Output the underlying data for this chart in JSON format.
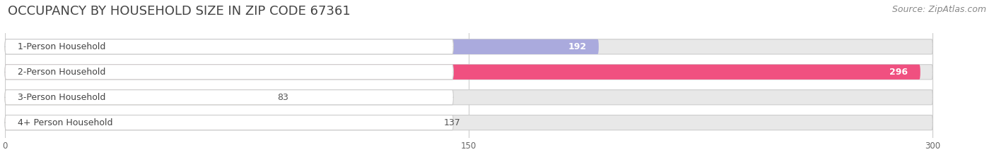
{
  "title": "OCCUPANCY BY HOUSEHOLD SIZE IN ZIP CODE 67361",
  "source": "Source: ZipAtlas.com",
  "categories": [
    "1-Person Household",
    "2-Person Household",
    "3-Person Household",
    "4+ Person Household"
  ],
  "values": [
    192,
    296,
    83,
    137
  ],
  "bar_colors": [
    "#aaaadd",
    "#f05080",
    "#f5c890",
    "#f0a898"
  ],
  "background_color": "#ffffff",
  "bar_bg_color": "#e8e8e8",
  "xlim_max": 315,
  "data_max": 300,
  "xticks": [
    0,
    150,
    300
  ],
  "title_fontsize": 13,
  "source_fontsize": 9,
  "label_fontsize": 9,
  "value_fontsize": 9
}
